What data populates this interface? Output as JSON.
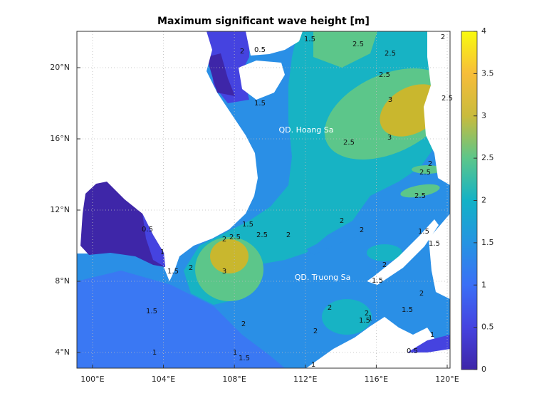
{
  "chart_data": {
    "type": "map",
    "title": "Maximum significant wave height [m]",
    "xlim": [
      99.12,
      120.16
    ],
    "ylim": [
      3.12,
      22.04
    ],
    "xticks": [
      {
        "value": 100,
        "label": "100°E"
      },
      {
        "value": 104,
        "label": "104°E"
      },
      {
        "value": 108,
        "label": "108°E"
      },
      {
        "value": 112,
        "label": "112°E"
      },
      {
        "value": 116,
        "label": "116°E"
      },
      {
        "value": 120,
        "label": "120°E"
      }
    ],
    "yticks": [
      {
        "value": 4,
        "label": "4°N"
      },
      {
        "value": 8,
        "label": "8°N"
      },
      {
        "value": 12,
        "label": "12°N"
      },
      {
        "value": 16,
        "label": "16°N"
      },
      {
        "value": 20,
        "label": "20°N"
      }
    ],
    "grid": true,
    "colorbar": {
      "clim": [
        0,
        4
      ],
      "ticks": [
        0,
        0.5,
        1,
        1.5,
        2,
        2.5,
        3,
        3.5,
        4
      ]
    },
    "places": [
      "QD. Hoang Sa",
      "QD. Truong Sa"
    ],
    "contour_labels": [
      2,
      0.5,
      1.5,
      2.5,
      2.5,
      2,
      2.5,
      1.5,
      3,
      3,
      2.5,
      2.5,
      2,
      2.5,
      2.5,
      1.5,
      2.5,
      2.5,
      2,
      2,
      2,
      2,
      0.5,
      1,
      2,
      1.5,
      3,
      2,
      1.5,
      2,
      2,
      2,
      2,
      1.5,
      1.5,
      1,
      1.5,
      2,
      1.5,
      1.5,
      1,
      1.5,
      1,
      0.5,
      1,
      1
    ]
  }
}
